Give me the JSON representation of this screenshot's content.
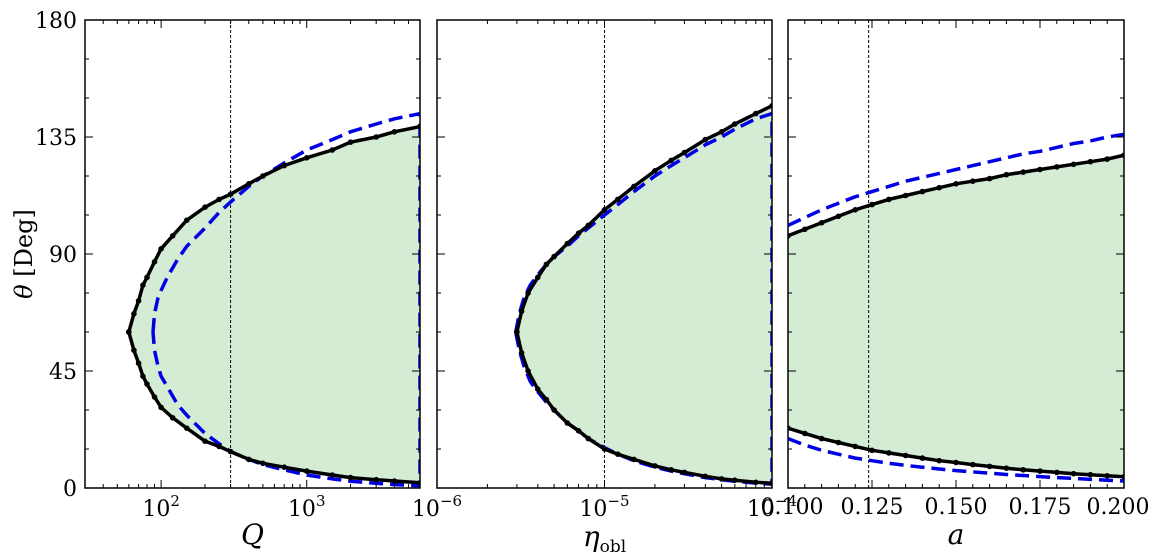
{
  "chart_data": [
    {
      "type": "area",
      "panel": "left",
      "xlabel": "Q",
      "ylabel": "θ [Deg]",
      "xscale": "log",
      "xlim": [
        30,
        6000
      ],
      "ylim": [
        0,
        180
      ],
      "yticks": [
        "0",
        "45",
        "90",
        "135",
        "180"
      ],
      "xtick_labels": [
        {
          "base": "10",
          "exp": "2",
          "value": 100
        },
        {
          "base": "10",
          "exp": "3",
          "value": 1000
        }
      ],
      "vline": 300,
      "filled_region": "between upper and lower boundary",
      "fill_color": "#d4ebd4",
      "series": [
        {
          "role": "upper",
          "style": "black solid with markers",
          "x": [
            60,
            65,
            70,
            75,
            80,
            90,
            100,
            120,
            150,
            200,
            250,
            300,
            400,
            500,
            700,
            1000,
            1500,
            2000,
            3000,
            4000,
            6000
          ],
          "y": [
            60,
            67,
            72,
            78,
            81,
            87,
            92,
            97,
            103,
            108,
            111,
            113,
            117,
            120,
            124,
            127,
            130,
            133,
            135,
            137,
            139
          ]
        },
        {
          "role": "lower",
          "style": "black solid with markers",
          "x": [
            60,
            65,
            70,
            75,
            80,
            90,
            100,
            120,
            150,
            200,
            250,
            300,
            400,
            500,
            700,
            1000,
            1500,
            2000,
            3000,
            4000,
            6000
          ],
          "y": [
            60,
            53,
            48,
            43,
            40,
            35,
            31,
            27,
            23,
            18,
            16,
            14,
            11,
            9.5,
            8,
            6.5,
            5,
            4,
            3.2,
            2.7,
            2
          ]
        },
        {
          "role": "analytic",
          "style": "blue dashed",
          "x": [
            88,
            90,
            95,
            100,
            110,
            130,
            150,
            200,
            250,
            300,
            400,
            500,
            700,
            1000,
            1500,
            2000,
            3000,
            4000,
            6000
          ],
          "yupper": [
            60,
            67,
            73,
            76,
            81,
            88,
            93,
            100,
            106,
            110,
            116,
            120,
            125,
            130,
            134,
            137,
            140,
            142,
            144
          ],
          "ylower": [
            60,
            53,
            47,
            43,
            39,
            32,
            28,
            21,
            17,
            14,
            11,
            9,
            7,
            5,
            3.5,
            2.6,
            1.8,
            1.3,
            0.9
          ]
        }
      ]
    },
    {
      "type": "area",
      "panel": "middle",
      "xlabel": "η_obl",
      "xscale": "log",
      "xlim": [
        1e-06,
        0.0001
      ],
      "ylim": [
        0,
        180
      ],
      "xtick_labels": [
        {
          "base": "10",
          "exp": "−6",
          "value": 1e-06
        },
        {
          "base": "10",
          "exp": "−5",
          "value": 1e-05
        },
        {
          "base": "10",
          "exp": "−4",
          "value": 0.0001
        }
      ],
      "vline": 1e-05,
      "series": [
        {
          "role": "upper",
          "style": "black solid with markers",
          "x": [
            3e-06,
            3.2e-06,
            3.5e-06,
            4e-06,
            4.5e-06,
            5e-06,
            6e-06,
            7e-06,
            8e-06,
            1e-05,
            1.2e-05,
            1.5e-05,
            2e-05,
            2.5e-05,
            3e-05,
            4e-05,
            5e-05,
            6e-05,
            8e-05,
            0.0001
          ],
          "y": [
            60,
            68,
            75,
            81,
            86,
            89,
            94,
            98,
            101,
            107,
            111,
            116,
            122,
            126,
            129,
            134,
            137,
            140,
            144,
            147
          ]
        },
        {
          "role": "lower",
          "style": "black solid with markers",
          "x": [
            3e-06,
            3.2e-06,
            3.5e-06,
            4e-06,
            4.5e-06,
            5e-06,
            6e-06,
            7e-06,
            8e-06,
            1e-05,
            1.2e-05,
            1.5e-05,
            2e-05,
            2.5e-05,
            3e-05,
            4e-05,
            5e-05,
            6e-05,
            8e-05,
            0.0001
          ],
          "y": [
            60,
            52,
            45,
            38,
            34,
            30,
            25,
            22,
            19,
            15,
            13,
            11,
            8.5,
            7,
            6,
            4.5,
            3.5,
            3,
            2.2,
            1.8
          ]
        },
        {
          "role": "analytic",
          "style": "blue dashed",
          "x": [
            2.95e-06,
            3.1e-06,
            3.3e-06,
            3.6e-06,
            4e-06,
            4.5e-06,
            5e-06,
            6e-06,
            7e-06,
            8e-06,
            1e-05,
            1.2e-05,
            1.5e-05,
            2e-05,
            2.5e-05,
            3e-05,
            4e-05,
            5e-05,
            6e-05,
            8e-05,
            0.0001
          ],
          "yupper": [
            60,
            67,
            73,
            78,
            82,
            86,
            89,
            93,
            97,
            100,
            105,
            109,
            114,
            120,
            124,
            127,
            132,
            135,
            138,
            142,
            144
          ],
          "ylower": [
            60,
            53,
            47,
            41,
            37,
            33,
            30,
            25,
            22,
            19,
            15.5,
            13,
            10.5,
            8,
            6.5,
            5.5,
            4,
            3.2,
            2.6,
            1.9,
            1.5
          ]
        }
      ]
    },
    {
      "type": "area",
      "panel": "right",
      "xlabel": "a",
      "xscale": "linear",
      "xlim": [
        0.1,
        0.2
      ],
      "ylim": [
        0,
        180
      ],
      "xticks": [
        "0.100",
        "0.125",
        "0.150",
        "0.175",
        "0.200"
      ],
      "vline": 0.124,
      "series": [
        {
          "role": "upper",
          "style": "black solid with markers",
          "x": [
            0.1,
            0.105,
            0.11,
            0.115,
            0.12,
            0.125,
            0.13,
            0.135,
            0.14,
            0.145,
            0.15,
            0.155,
            0.16,
            0.165,
            0.17,
            0.175,
            0.18,
            0.185,
            0.19,
            0.195,
            0.2
          ],
          "y": [
            97,
            99.5,
            102,
            104.5,
            107,
            109,
            111,
            112.5,
            114,
            115.5,
            117,
            118,
            119,
            120.5,
            121.5,
            122.5,
            123.5,
            124.5,
            125.5,
            126.5,
            128
          ]
        },
        {
          "role": "lower",
          "style": "black solid with markers",
          "x": [
            0.1,
            0.105,
            0.11,
            0.115,
            0.12,
            0.125,
            0.13,
            0.135,
            0.14,
            0.145,
            0.15,
            0.155,
            0.16,
            0.165,
            0.17,
            0.175,
            0.18,
            0.185,
            0.19,
            0.195,
            0.2
          ],
          "y": [
            23,
            21,
            19,
            17.5,
            16,
            14.5,
            13.5,
            12.5,
            11.5,
            10.5,
            9.8,
            9,
            8.3,
            7.6,
            7,
            6.5,
            6,
            5.5,
            5.1,
            4.7,
            4.3
          ]
        },
        {
          "role": "analytic",
          "style": "blue dashed",
          "x": [
            0.1,
            0.105,
            0.11,
            0.115,
            0.12,
            0.125,
            0.13,
            0.135,
            0.14,
            0.145,
            0.15,
            0.155,
            0.16,
            0.165,
            0.17,
            0.175,
            0.18,
            0.185,
            0.19,
            0.195,
            0.2
          ],
          "yupper": [
            101,
            104,
            107,
            109.5,
            112,
            114,
            116,
            118,
            119.5,
            121,
            122.5,
            124,
            125.5,
            127,
            128.5,
            129.5,
            131,
            132.5,
            133.5,
            135,
            136
          ],
          "ylower": [
            19,
            16.5,
            14.5,
            13,
            11.5,
            10.5,
            9.5,
            8.7,
            8,
            7.3,
            6.7,
            6.2,
            5.7,
            5.2,
            4.8,
            4.4,
            4,
            3.7,
            3.3,
            3,
            2.7
          ]
        }
      ]
    }
  ],
  "colors": {
    "fill": "#d4ebd4",
    "numeric": "#000000",
    "analytic": "#0000e6",
    "vline": "#000000"
  }
}
